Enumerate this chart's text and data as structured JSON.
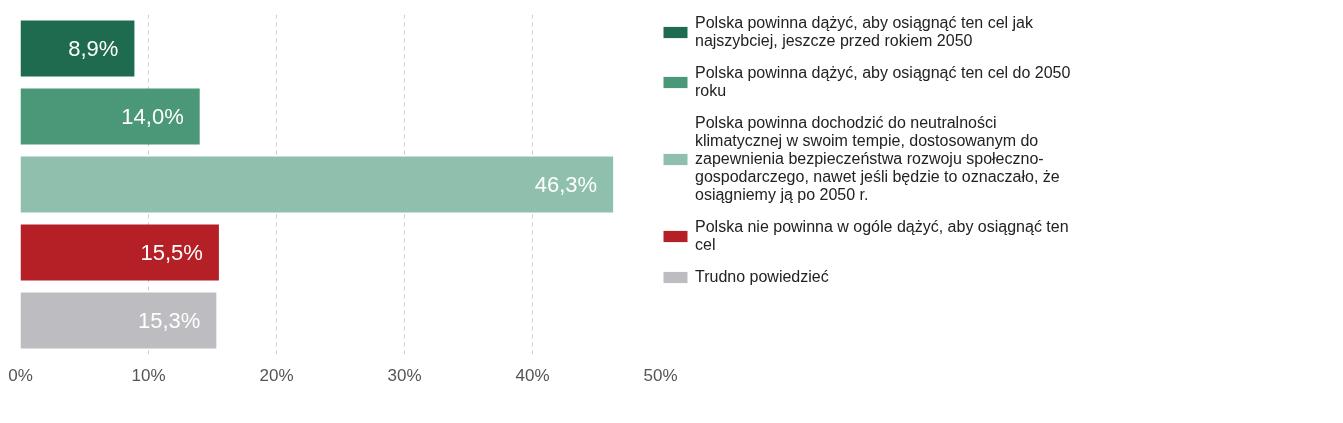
{
  "chart_data": {
    "type": "bar",
    "orientation": "horizontal",
    "categories": [
      null,
      null,
      null,
      null,
      null
    ],
    "series": [
      {
        "name": "Polska powinna dążyć, aby osiągnąć ten cel jak najszybciej, jeszcze przed rokiem 2050",
        "color": "#1e6b4f",
        "values": [
          8.9,
          null,
          null,
          null,
          null
        ],
        "value_labels": [
          "8,9%",
          null,
          null,
          null,
          null
        ]
      },
      {
        "name": "Polska powinna dążyć, aby osiągnąć ten cel do 2050 roku",
        "color": "#4a9877",
        "values": [
          null,
          14.0,
          null,
          null,
          null
        ],
        "value_labels": [
          null,
          "14,0%",
          null,
          null,
          null
        ]
      },
      {
        "name": "Polska powinna dochodzić do neutralności klimatycznej w swoim tempie, dostosowanym do zapewnienia bezpieczeństwa rozwoju społeczno-gospodarczego, nawet jeśli będzie to oznaczało, że osiągniemy ją po 2050 r.",
        "color": "#8fc0ad",
        "values": [
          null,
          null,
          46.3,
          null,
          null
        ],
        "value_labels": [
          null,
          null,
          "46,3%",
          null,
          null
        ]
      },
      {
        "name": "Polska nie powinna w ogóle dążyć, aby osiągnąć ten cel",
        "color": "#b51f26",
        "values": [
          null,
          null,
          null,
          15.5,
          null
        ],
        "value_labels": [
          null,
          null,
          null,
          "15,5%",
          null
        ]
      },
      {
        "name": "Trudno powiedzieć",
        "color": "#bdbdc1",
        "values": [
          null,
          null,
          null,
          null,
          15.3
        ],
        "value_labels": [
          null,
          null,
          null,
          null,
          "15,3%"
        ]
      }
    ],
    "xlim": [
      0,
      50
    ],
    "xticks": [
      {
        "value": 0,
        "label": "0%"
      },
      {
        "value": 10,
        "label": "10%"
      },
      {
        "value": 20,
        "label": "20%"
      },
      {
        "value": 30,
        "label": "30%"
      },
      {
        "value": 40,
        "label": "40%"
      },
      {
        "value": 50,
        "label": "50%"
      }
    ],
    "grid": "x",
    "legend": "right"
  }
}
